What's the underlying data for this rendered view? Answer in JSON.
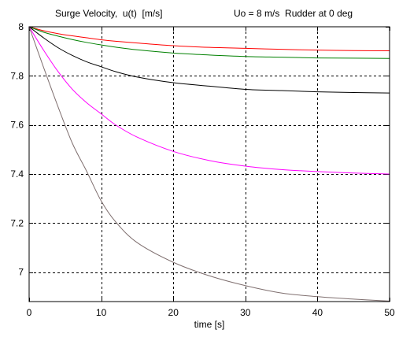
{
  "chart_data": {
    "type": "line",
    "title_left": "Surge Velocity,  u(t)  [m/s]",
    "title_right": "Uo = 8 m/s  Rudder at 0 deg",
    "xlabel": "time [s]",
    "ylabel": "",
    "xlim": [
      0,
      50
    ],
    "ylim": [
      6.88,
      8.0
    ],
    "xticks": [
      0,
      10,
      20,
      30,
      40,
      50
    ],
    "xtick_labels": [
      "0",
      "10",
      "20",
      "30",
      "40",
      "50"
    ],
    "yticks": [
      7.0,
      7.2,
      7.4,
      7.6,
      7.8,
      8.0
    ],
    "ytick_labels": [
      "7",
      "7.2",
      "7.4",
      "7.6",
      "7.8",
      "8"
    ],
    "grid": true,
    "series": [
      {
        "color": "#0000ff",
        "x": [
          0,
          5,
          10,
          15,
          20,
          25,
          30,
          35,
          40,
          45,
          50
        ],
        "y": [
          8.0,
          8.0,
          8.0,
          8.0,
          8.0,
          8.0,
          8.0,
          8.0,
          8.0,
          8.0,
          8.0
        ]
      },
      {
        "color": "#ff0000",
        "x": [
          0,
          2,
          4,
          6,
          8,
          10,
          12,
          15,
          20,
          25,
          30,
          35,
          40,
          45,
          50
        ],
        "y": [
          8.0,
          7.984,
          7.972,
          7.963,
          7.955,
          7.947,
          7.941,
          7.934,
          7.923,
          7.916,
          7.912,
          7.908,
          7.905,
          7.903,
          7.902
        ]
      },
      {
        "color": "#008000",
        "x": [
          0,
          2,
          4,
          6,
          8,
          10,
          12,
          15,
          20,
          25,
          30,
          35,
          40,
          45,
          50
        ],
        "y": [
          8.0,
          7.978,
          7.962,
          7.948,
          7.936,
          7.926,
          7.917,
          7.906,
          7.893,
          7.885,
          7.879,
          7.876,
          7.873,
          7.872,
          7.871
        ]
      },
      {
        "color": "#000000",
        "x": [
          0,
          2,
          4,
          6,
          8,
          10,
          12,
          15,
          20,
          25,
          30,
          35,
          40,
          45,
          50
        ],
        "y": [
          8.0,
          7.955,
          7.915,
          7.883,
          7.857,
          7.837,
          7.817,
          7.795,
          7.772,
          7.758,
          7.745,
          7.74,
          7.735,
          7.732,
          7.73
        ]
      },
      {
        "color": "#ff00ff",
        "x": [
          0,
          2,
          4,
          6,
          8,
          10,
          12,
          15,
          20,
          25,
          30,
          35,
          40,
          45,
          50
        ],
        "y": [
          8.0,
          7.905,
          7.818,
          7.745,
          7.69,
          7.645,
          7.6,
          7.55,
          7.492,
          7.455,
          7.432,
          7.418,
          7.41,
          7.404,
          7.4
        ]
      },
      {
        "color": "#7f6f6f",
        "x": [
          0,
          2,
          4,
          6,
          8,
          10,
          12,
          15,
          20,
          25,
          30,
          35,
          40,
          45,
          50
        ],
        "y": [
          8.0,
          7.835,
          7.675,
          7.525,
          7.41,
          7.29,
          7.205,
          7.12,
          7.04,
          6.985,
          6.945,
          6.915,
          6.9,
          6.89,
          6.882
        ]
      }
    ]
  }
}
